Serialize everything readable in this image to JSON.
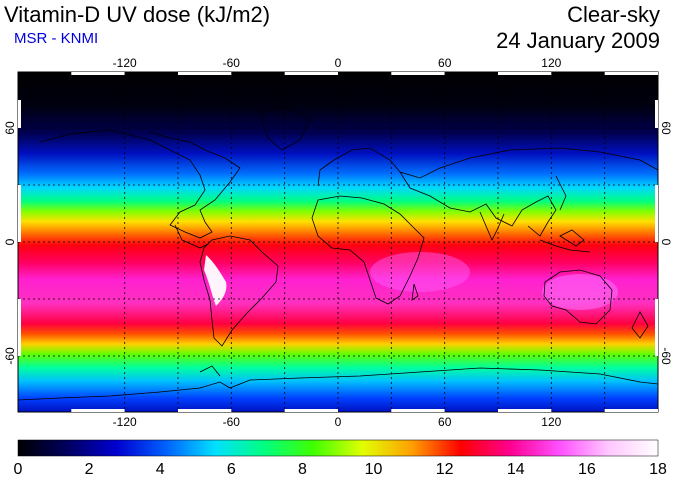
{
  "header": {
    "title": "Vitamin-D UV dose (kJ/m2)",
    "source": "MSR - KNMI",
    "sky_condition": "Clear-sky",
    "date": "24 January 2009"
  },
  "colors": {
    "source_text": "#0000dd",
    "background": "#ffffff"
  },
  "map": {
    "projection": "equirectangular",
    "lon_ticks": [
      "-120",
      "-60",
      "0",
      "60",
      "120"
    ],
    "lat_ticks": [
      "60",
      "0",
      "-60"
    ],
    "lat_ticks_right": [
      "60",
      "0",
      "-60"
    ]
  },
  "colorbar": {
    "labels": [
      "0",
      "2",
      "4",
      "6",
      "8",
      "10",
      "12",
      "14",
      "16",
      "18"
    ],
    "min": 0,
    "max": 18,
    "stops": [
      "#000000",
      "#000060",
      "#0000d0",
      "#0060ff",
      "#00e0ff",
      "#00ff80",
      "#40ff00",
      "#e0ff00",
      "#ffa000",
      "#ff0000",
      "#ff0090",
      "#ff50ff",
      "#ffc8ff",
      "#ffffff"
    ]
  }
}
